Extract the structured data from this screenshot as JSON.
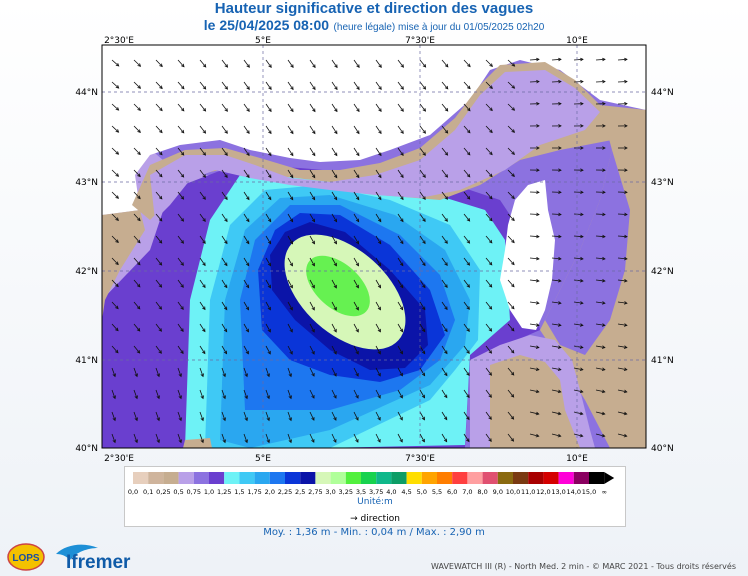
{
  "header": {
    "title": "Hauteur significative et direction des vagues",
    "date": "le 25/04/2025 08:00",
    "date_note": "(heure légale) mise à jour du 01/05/2025 02h20"
  },
  "map": {
    "lon_ticks": [
      "2°30'E",
      "5°E",
      "7°30'E",
      "10°E"
    ],
    "lat_ticks": [
      "44°N",
      "43°N",
      "42°N",
      "41°N",
      "40°N"
    ],
    "lon_range": [
      2.0,
      11.0
    ],
    "lat_range": [
      40.0,
      44.4
    ],
    "land_color": "#c6ad90",
    "corsica_color": "#ffffff"
  },
  "legend": {
    "labels": [
      "0,0",
      "0,1",
      "0,25",
      "0,5",
      "0,75",
      "1,0",
      "1,25",
      "1,5",
      "1,75",
      "2,0",
      "2,25",
      "2,5",
      "2,75",
      "3,0",
      "3,25",
      "3,5",
      "3,75",
      "4,0",
      "4,5",
      "5,0",
      "5,5",
      "6,0",
      "7,0",
      "8,0",
      "9,0",
      "10,0",
      "11,0",
      "12,0",
      "13,0",
      "14,0",
      "15,0",
      "∞"
    ],
    "colors": [
      "#e7cfbd",
      "#cfb49c",
      "#c6ad90",
      "#b9a0e8",
      "#8c72e0",
      "#6a3fcf",
      "#6ef2f6",
      "#3fc9f5",
      "#2aa7f0",
      "#1d77f0",
      "#0a35d8",
      "#0b14a8",
      "#d6f7b8",
      "#b0ff9a",
      "#52f03e",
      "#18d24e",
      "#0fb88a",
      "#0d9d66",
      "#ffde00",
      "#ffa400",
      "#ff7d00",
      "#ff3f3f",
      "#ff9fa0",
      "#e05070",
      "#8a6a10",
      "#7a3a12",
      "#a80000",
      "#d40000",
      "#ff00d8",
      "#8a0060",
      "#000000"
    ],
    "unit": "Unité:m",
    "direction_label": "direction"
  },
  "stats": "Moy. : 1,36 m   -   Min. : 0,04 m / Max. : 2,90 m",
  "footer": "WAVEWATCH III (R) - North Med. 2 min - © MARC 2021 - Tous droits réservés",
  "logos": {
    "lops": "LOPS",
    "ifremer": "Ifremer"
  }
}
